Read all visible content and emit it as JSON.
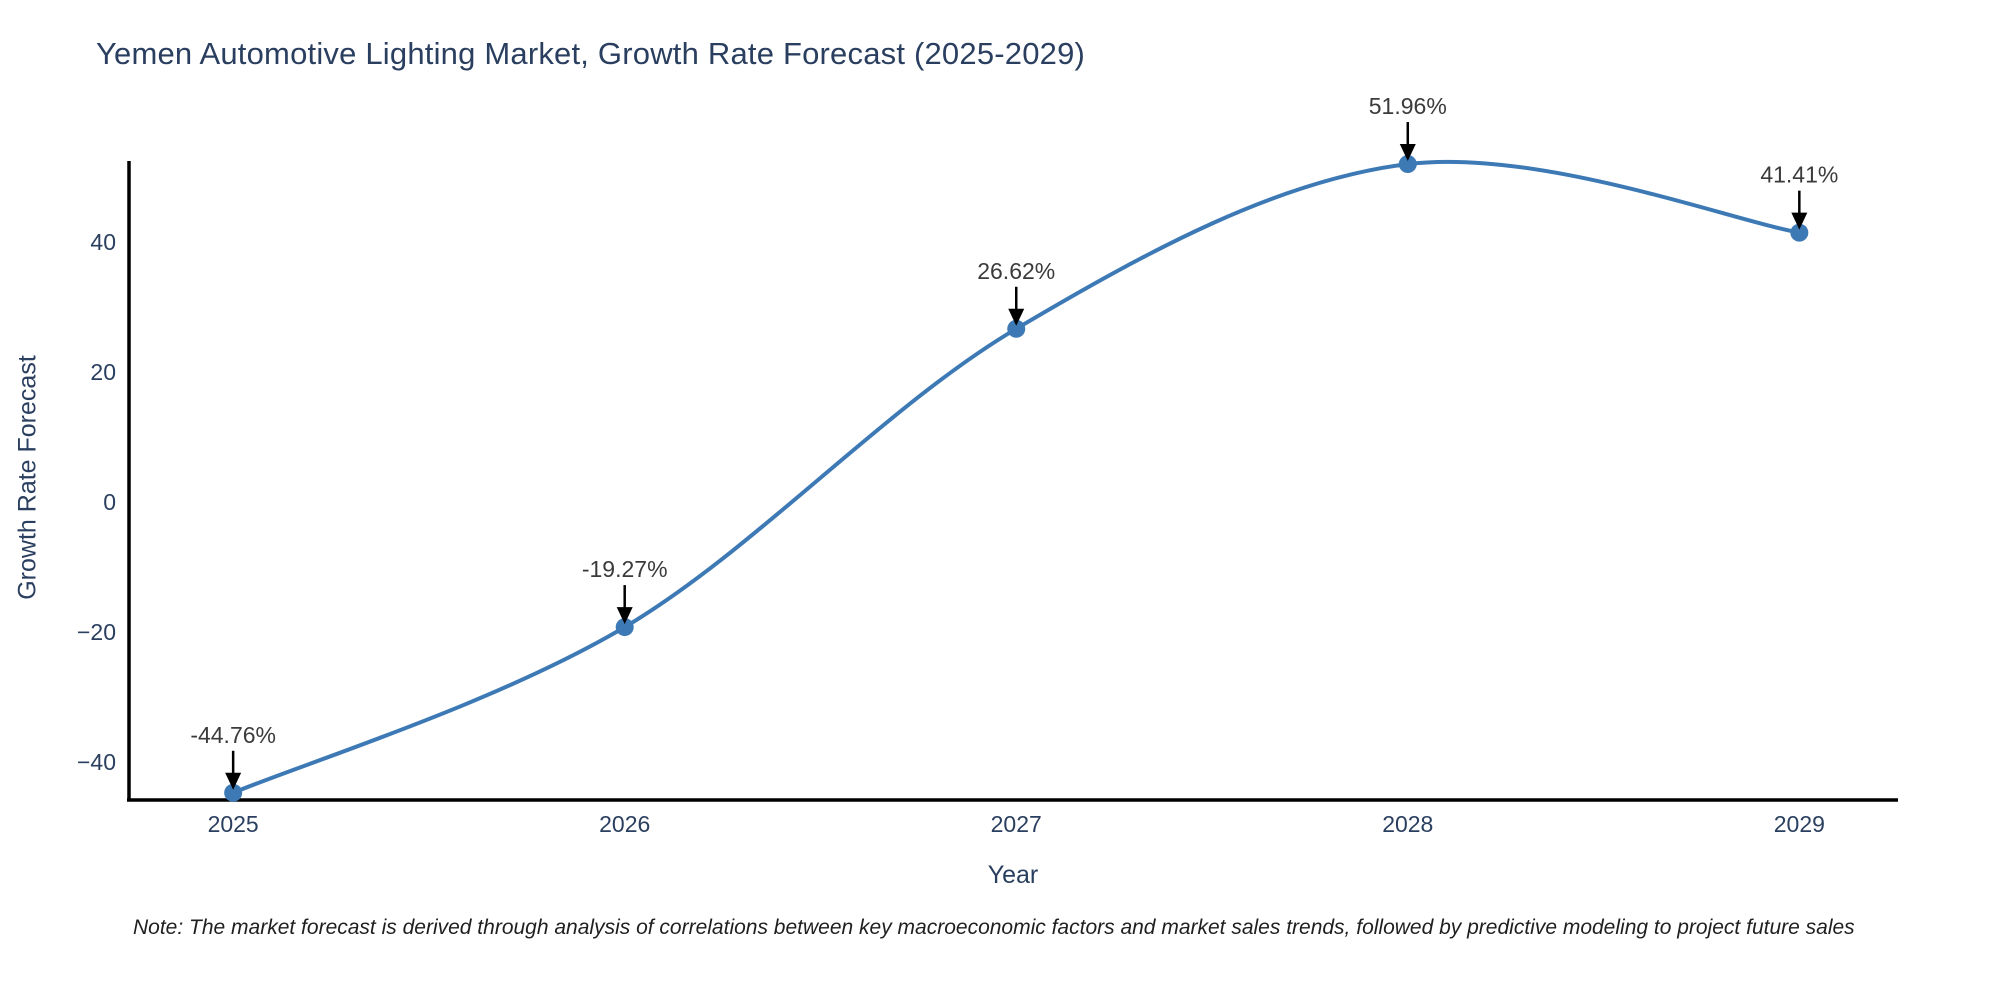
{
  "chart_data": {
    "type": "line",
    "title": "Yemen Automotive Lighting Market, Growth Rate Forecast (2025-2029)",
    "xlabel": "Year",
    "ylabel": "Growth Rate Forecast",
    "categories": [
      2025,
      2026,
      2027,
      2028,
      2029
    ],
    "values": [
      -44.76,
      -19.27,
      26.62,
      51.96,
      41.41
    ],
    "point_labels": [
      "-44.76%",
      "-19.27%",
      "26.62%",
      "51.96%",
      "41.41%"
    ],
    "yticks": [
      -40,
      -20,
      0,
      20,
      40
    ],
    "ylim": [
      -45.87,
      52.43
    ],
    "xlim": [
      2024.734,
      2029.252
    ],
    "grid": false,
    "legend": "none",
    "line_shape": "spline",
    "marker": "circle",
    "annotation_arrows": true,
    "colors": {
      "line": "#3d7ab5",
      "marker": "#3d7ab5",
      "axis_text": "#2a3f5f",
      "annotation_text": "#3b3b3b",
      "arrow": "#000000",
      "axis_line": "#000000",
      "background": "#ffffff"
    },
    "note": "Note: The market forecast is derived through analysis of correlations between key macroeconomic factors and market sales trends, followed by predictive modeling to project future sales"
  }
}
